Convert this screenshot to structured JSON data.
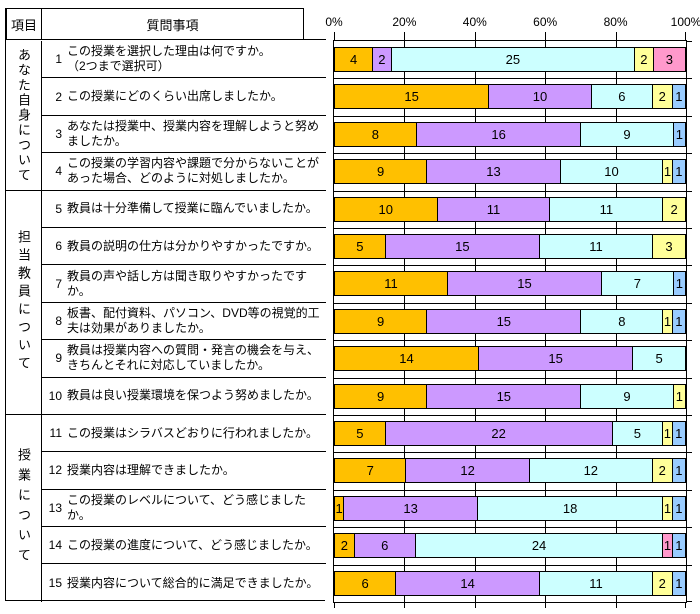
{
  "table": {
    "header": {
      "item": "項目",
      "question": "質問事項"
    },
    "categories": [
      {
        "label": "あなた自身について",
        "row_span": 4
      },
      {
        "label": "担当教員について",
        "row_span": 6
      },
      {
        "label": "授業について",
        "row_span": 5
      }
    ],
    "questions": [
      {
        "no": "1",
        "text": "この授業を選択した理由は何ですか。",
        "text2": "（2つまで選択可）"
      },
      {
        "no": "2",
        "text": "この授業にどのくらい出席しましたか。"
      },
      {
        "no": "3",
        "text": "あなたは授業中、授業内容を理解しようと努めましたか。"
      },
      {
        "no": "4",
        "text": "この授業の学習内容や課題で分からないことがあった場合、どのように対処しましたか。"
      },
      {
        "no": "5",
        "text": "教員は十分準備して授業に臨んでいましたか。"
      },
      {
        "no": "6",
        "text": "教員の説明の仕方は分かりやすかったですか。"
      },
      {
        "no": "7",
        "text": "教員の声や話し方は聞き取りやすかったですか。"
      },
      {
        "no": "8",
        "text": "板書、配付資料、パソコン、DVD等の視覚的工夫は効果がありましたか。"
      },
      {
        "no": "9",
        "text": "教員は授業内容への質問・発言の機会を与え、きちんとそれに対応していましたか。"
      },
      {
        "no": "10",
        "text": "教員は良い授業環境を保つよう努めましたか。"
      },
      {
        "no": "11",
        "text": "この授業はシラバスどおりに行われましたか。"
      },
      {
        "no": "12",
        "text": "授業内容は理解できましたか。"
      },
      {
        "no": "13",
        "text": "この授業のレベルについて、どう感じましたか。"
      },
      {
        "no": "14",
        "text": "この授業の進度について、どう感じましたか。"
      },
      {
        "no": "15",
        "text": "授業内容について総合的に満足できましたか。"
      }
    ]
  },
  "chart_data": {
    "type": "bar",
    "subtype": "stacked-horizontal-100percent",
    "categories": [
      "1",
      "2",
      "3",
      "4",
      "5",
      "6",
      "7",
      "8",
      "9",
      "10",
      "11",
      "12",
      "13",
      "14",
      "15"
    ],
    "value_axis": {
      "position": "top",
      "ticks": [
        "0%",
        "20%",
        "40%",
        "60%",
        "80%",
        "100%"
      ],
      "range": [
        0,
        100
      ],
      "grid": true
    },
    "category_axis": {
      "position": "right",
      "grid": true
    },
    "row_totals": [
      36,
      34,
      34,
      34,
      34,
      34,
      34,
      34,
      34,
      34,
      34,
      34,
      34,
      34,
      34
    ],
    "series": [
      {
        "color": "#FFC000",
        "values": [
          4,
          15,
          8,
          9,
          10,
          5,
          11,
          9,
          14,
          9,
          5,
          7,
          1,
          2,
          6
        ]
      },
      {
        "color": "#CC99FF",
        "values": [
          2,
          10,
          16,
          13,
          11,
          15,
          15,
          15,
          15,
          15,
          22,
          12,
          13,
          6,
          14
        ]
      },
      {
        "color": "#CCFFFF",
        "values": [
          25,
          6,
          9,
          10,
          11,
          11,
          7,
          8,
          5,
          9,
          5,
          12,
          18,
          24,
          11
        ]
      },
      {
        "color": "#FFFF99",
        "values": [
          2,
          2,
          0,
          1,
          2,
          3,
          0,
          1,
          0,
          1,
          1,
          2,
          1,
          0,
          2
        ]
      },
      {
        "color": "#FF99CC",
        "values": [
          3,
          0,
          0,
          0,
          0,
          0,
          0,
          0,
          0,
          0,
          0,
          0,
          0,
          1,
          0
        ]
      },
      {
        "color": "#99CCFF",
        "values": [
          0,
          1,
          1,
          1,
          0,
          0,
          1,
          1,
          0,
          0,
          1,
          1,
          1,
          1,
          1
        ]
      }
    ]
  }
}
